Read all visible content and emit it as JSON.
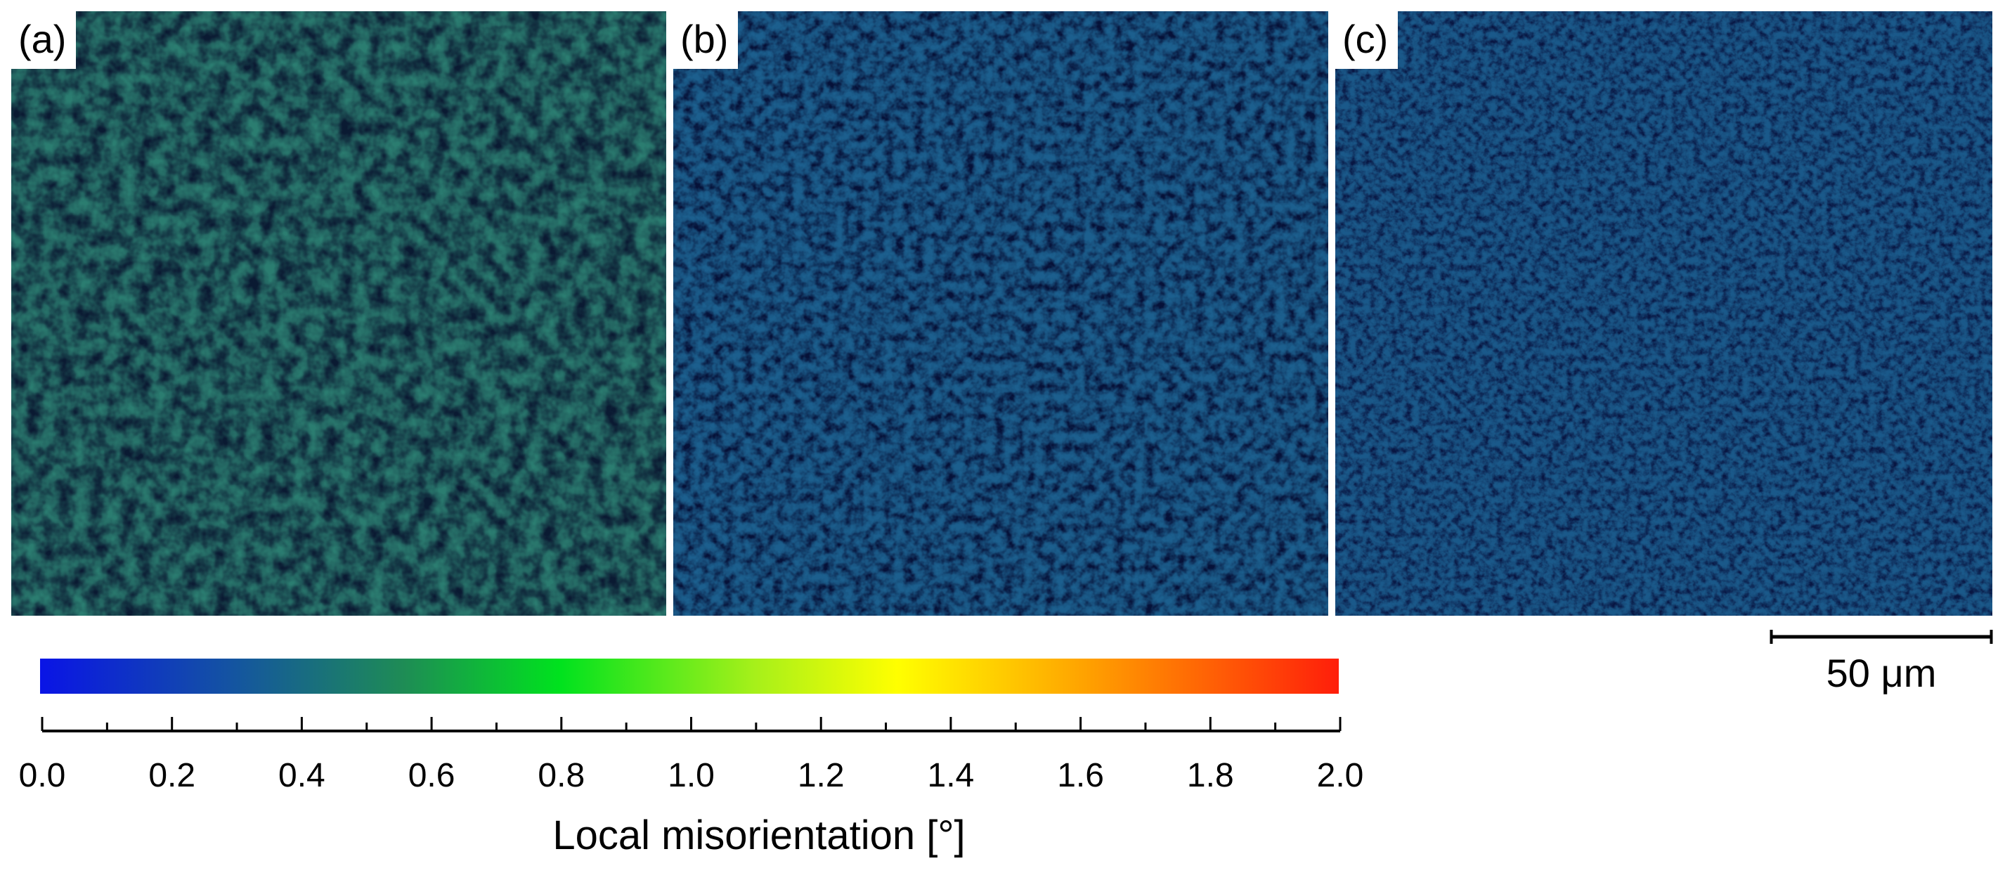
{
  "panels": [
    {
      "label": "(a)"
    },
    {
      "label": "(b)"
    },
    {
      "label": "(c)"
    }
  ],
  "colorbar": {
    "min": 0.0,
    "max": 2.0,
    "tick_labels": [
      "0.0",
      "0.2",
      "0.4",
      "0.6",
      "0.8",
      "1.0",
      "1.2",
      "1.4",
      "1.6",
      "1.8",
      "2.0"
    ],
    "title": "Local misorientation [°]",
    "colors": [
      "#0a14e6",
      "#1455a0",
      "#1e8c55",
      "#00e21e",
      "#a6f01a",
      "#ffff00",
      "#ffa500",
      "#ff1e0a"
    ]
  },
  "scale_bar": {
    "label": "50 μm"
  }
}
